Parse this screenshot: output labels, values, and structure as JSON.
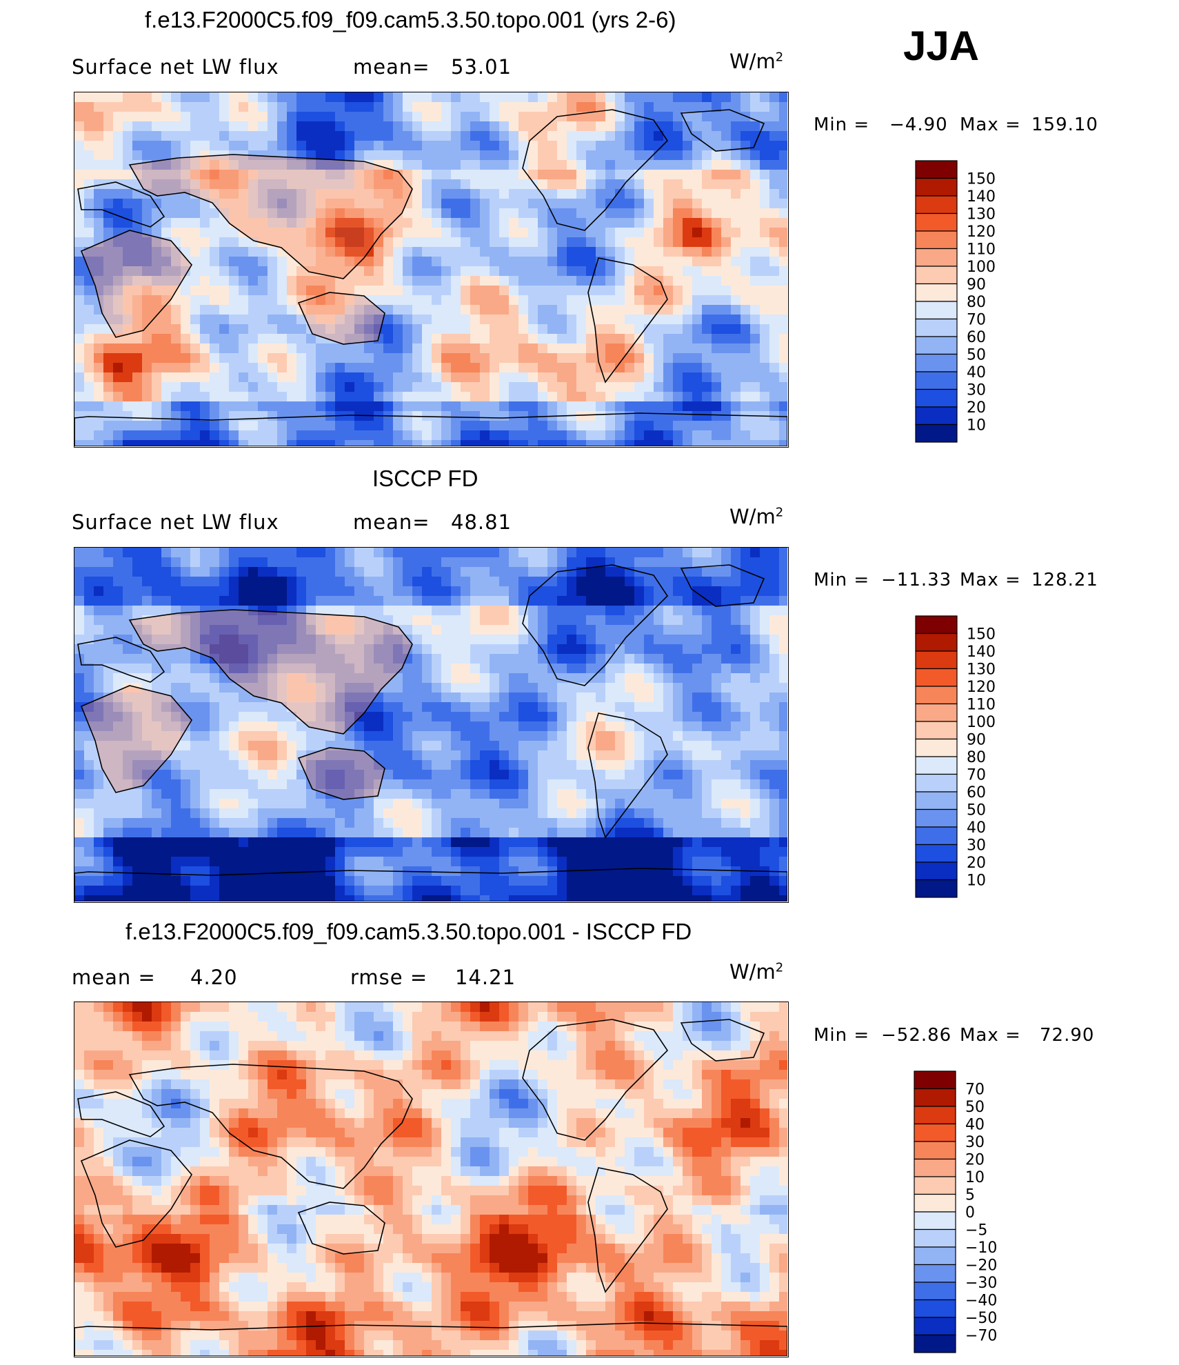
{
  "season": "JJA",
  "panels": [
    {
      "title": "f.e13.F2000C5.f09_f09.cam5.3.50.topo.001 (yrs 2-6)",
      "left_label": "Surface net LW flux",
      "stat_label": "mean=",
      "stat_value": "53.01",
      "units": "W/m",
      "units_sup": "2",
      "min_label": "Min =",
      "min_value": "−4.90",
      "max_label": "Max =",
      "max_value": "159.10",
      "colorbar": {
        "labels": [
          "150",
          "140",
          "130",
          "120",
          "110",
          "100",
          "90",
          "80",
          "70",
          "60",
          "50",
          "40",
          "30",
          "20",
          "10"
        ],
        "colors": [
          "#7f0000",
          "#b01a00",
          "#dc3a10",
          "#f25a2a",
          "#f7855a",
          "#f9a987",
          "#fccbb2",
          "#fde9da",
          "#dbe9fb",
          "#b9d1fa",
          "#92b4f5",
          "#6a93ef",
          "#3f6fe8",
          "#1d4fe0",
          "#0a2ec2",
          "#001888"
        ]
      },
      "map_palette": [
        "#0a2ec2",
        "#1d4fe0",
        "#3f6fe8",
        "#6a93ef",
        "#92b4f5",
        "#b9d1fa",
        "#dbe9fb",
        "#fde9da",
        "#fccbb2",
        "#f9a987",
        "#f7855a",
        "#dc3a10",
        "#b01a00"
      ]
    },
    {
      "title": "ISCCP FD",
      "left_label": "Surface net LW flux",
      "stat_label": "mean=",
      "stat_value": "48.81",
      "units": "W/m",
      "units_sup": "2",
      "min_label": "Min =",
      "min_value": "−11.33",
      "max_label": "Max =",
      "max_value": "128.21",
      "colorbar": {
        "labels": [
          "150",
          "140",
          "130",
          "120",
          "110",
          "100",
          "90",
          "80",
          "70",
          "60",
          "50",
          "40",
          "30",
          "20",
          "10"
        ],
        "colors": [
          "#7f0000",
          "#b01a00",
          "#dc3a10",
          "#f25a2a",
          "#f7855a",
          "#f9a987",
          "#fccbb2",
          "#fde9da",
          "#dbe9fb",
          "#b9d1fa",
          "#92b4f5",
          "#6a93ef",
          "#3f6fe8",
          "#1d4fe0",
          "#0a2ec2",
          "#001888"
        ]
      },
      "map_palette": [
        "#001888",
        "#0a2ec2",
        "#1d4fe0",
        "#3f6fe8",
        "#6a93ef",
        "#92b4f5",
        "#b9d1fa",
        "#dbe9fb",
        "#fde9da",
        "#fccbb2",
        "#f9a987"
      ]
    },
    {
      "title": "f.e13.F2000C5.f09_f09.cam5.3.50.topo.001 - ISCCP FD",
      "left_label": "mean =",
      "left_value": "4.20",
      "stat_label": "rmse =",
      "stat_value": "14.21",
      "units": "W/m",
      "units_sup": "2",
      "min_label": "Min =",
      "min_value": "−52.86",
      "max_label": "Max =",
      "max_value": "72.90",
      "colorbar": {
        "labels": [
          "70",
          "50",
          "40",
          "30",
          "20",
          "10",
          "5",
          "0",
          "−5",
          "−10",
          "−20",
          "−30",
          "−40",
          "−50",
          "−70"
        ],
        "colors": [
          "#7f0000",
          "#b01a00",
          "#dc3a10",
          "#f25a2a",
          "#f7855a",
          "#f9a987",
          "#fccbb2",
          "#fde9da",
          "#dbe9fb",
          "#b9d1fa",
          "#92b4f5",
          "#6a93ef",
          "#3f6fe8",
          "#1d4fe0",
          "#0a2ec2",
          "#001888"
        ]
      },
      "map_palette": [
        "#3f6fe8",
        "#6a93ef",
        "#92b4f5",
        "#b9d1fa",
        "#dbe9fb",
        "#fde9da",
        "#fccbb2",
        "#f9a987",
        "#f7855a",
        "#f25a2a",
        "#dc3a10",
        "#b01a00"
      ]
    }
  ]
}
